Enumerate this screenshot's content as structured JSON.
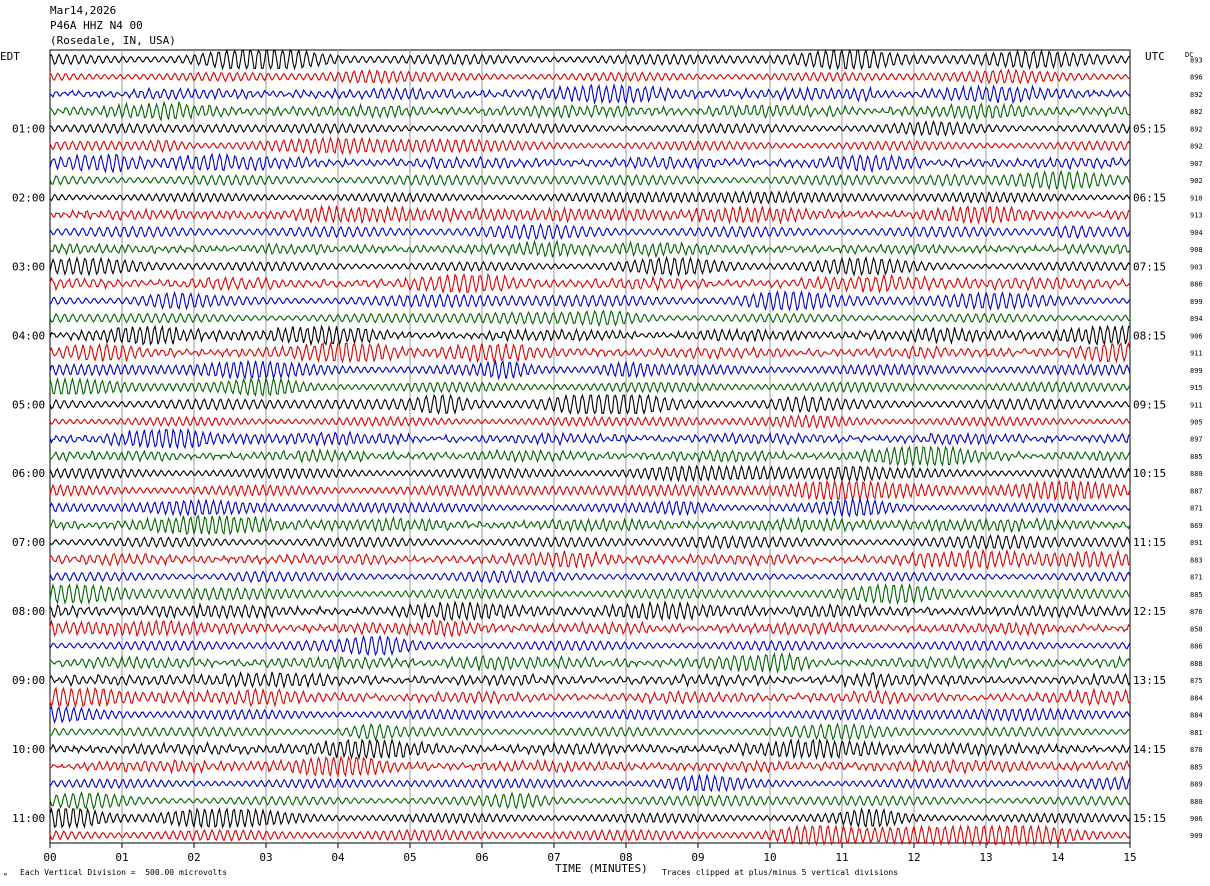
{
  "header": {
    "date": "Mar14,2026",
    "station": "P46A HHZ N4 00",
    "location": "(Rosedale, IN, USA)"
  },
  "axes": {
    "left_tz": "EDT",
    "right_tz": "UTC",
    "dc_label": "DC",
    "xlabel": "TIME (MINUTES)"
  },
  "footer": {
    "scale_note": "Each Vertical Division =  500.00 microvolts",
    "clip_note": "Traces clipped at plus/minus 5 vertical divisions"
  },
  "chart_data": {
    "type": "seismogram",
    "x_ticks": [
      "00",
      "01",
      "02",
      "03",
      "04",
      "05",
      "06",
      "07",
      "08",
      "09",
      "10",
      "11",
      "12",
      "13",
      "14",
      "15"
    ],
    "xlim": [
      0,
      15
    ],
    "grid": true,
    "trace_colors": [
      "#000000",
      "#dd0000",
      "#0000cc",
      "#006400"
    ],
    "left_hour_labels": [
      "01:00",
      "02:00",
      "03:00",
      "04:00",
      "05:00",
      "06:00",
      "07:00",
      "08:00",
      "09:00",
      "10:00",
      "11:00"
    ],
    "right_hour_labels": [
      "05:15",
      "06:15",
      "07:15",
      "08:15",
      "09:15",
      "10:15",
      "11:15",
      "12:15",
      "13:15",
      "14:15",
      "15:15"
    ],
    "dc_offsets": [
      893,
      896,
      892,
      882,
      892,
      892,
      907,
      902,
      910,
      913,
      904,
      908,
      903,
      886,
      899,
      894,
      906,
      911,
      899,
      915,
      911,
      905,
      897,
      885,
      880,
      887,
      871,
      869,
      891,
      883,
      871,
      885,
      876,
      858,
      886,
      888,
      875,
      884,
      884,
      881,
      870,
      885,
      889,
      880,
      906,
      909
    ]
  }
}
